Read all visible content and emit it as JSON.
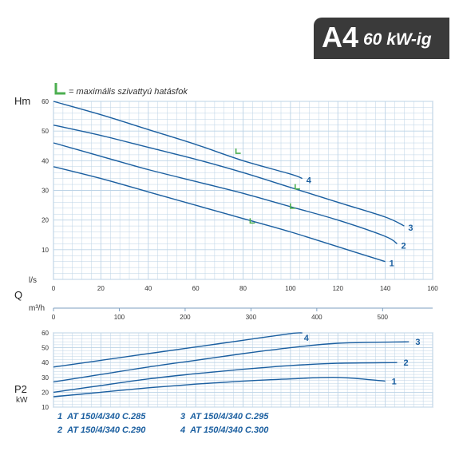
{
  "badge": {
    "code": "A4",
    "range": "60 kW-ig"
  },
  "legend_note": "= maximális szivattyú hatásfok",
  "colors": {
    "curve": "#1b5fa0",
    "grid": "#bcd3e6",
    "efficiency_mark": "#4caf50",
    "badge_bg": "#3a3a3a"
  },
  "chart_data": [
    {
      "type": "line",
      "ylabel": "Hm",
      "xlabel_primary": "l/s",
      "xlabel_secondary": "m³/h",
      "xlabel_q": "Q",
      "xlim": [
        0,
        160
      ],
      "ylim": [
        0,
        60
      ],
      "x_ticks": [
        0,
        20,
        40,
        60,
        80,
        100,
        120,
        140,
        160
      ],
      "y_ticks": [
        10,
        20,
        30,
        40,
        50,
        60
      ],
      "secondary_x_ticks": [
        0,
        100,
        200,
        300,
        400,
        500
      ],
      "series": [
        {
          "name": "1",
          "x": [
            0,
            20,
            40,
            60,
            80,
            100,
            120,
            140
          ],
          "y": [
            38,
            34,
            29.5,
            25,
            20.5,
            16,
            11,
            6
          ]
        },
        {
          "name": "2",
          "x": [
            0,
            20,
            40,
            60,
            80,
            100,
            120,
            140,
            145
          ],
          "y": [
            46,
            41.5,
            37,
            33,
            29,
            24.5,
            20,
            14.5,
            12
          ]
        },
        {
          "name": "3",
          "x": [
            0,
            20,
            40,
            60,
            80,
            100,
            120,
            140,
            148
          ],
          "y": [
            52,
            48.5,
            44.5,
            40.5,
            36,
            31,
            26,
            21,
            18
          ]
        },
        {
          "name": "4",
          "x": [
            0,
            20,
            40,
            60,
            80,
            100,
            105
          ],
          "y": [
            60,
            55.5,
            50.5,
            45.5,
            40,
            35.5,
            34
          ]
        }
      ],
      "efficiency_points": [
        {
          "x": 83,
          "y": 19
        },
        {
          "x": 100,
          "y": 24
        },
        {
          "x": 102,
          "y": 30.5
        },
        {
          "x": 77,
          "y": 42.5
        }
      ]
    },
    {
      "type": "line",
      "ylabel": "P2",
      "yunit": "kW",
      "xlim": [
        0,
        160
      ],
      "ylim": [
        10,
        60
      ],
      "y_ticks": [
        10,
        20,
        30,
        40,
        50,
        60
      ],
      "series": [
        {
          "name": "1",
          "x": [
            0,
            20,
            40,
            60,
            80,
            100,
            120,
            140
          ],
          "y": [
            17,
            20,
            23,
            25.5,
            27.5,
            29,
            30,
            27.5
          ]
        },
        {
          "name": "2",
          "x": [
            0,
            20,
            40,
            60,
            80,
            100,
            120,
            145
          ],
          "y": [
            20,
            24.5,
            29,
            32.5,
            35.5,
            38,
            39.5,
            40
          ]
        },
        {
          "name": "3",
          "x": [
            0,
            20,
            40,
            60,
            80,
            100,
            120,
            150
          ],
          "y": [
            27,
            32,
            37,
            41.5,
            46,
            50,
            53,
            54
          ]
        },
        {
          "name": "4",
          "x": [
            0,
            20,
            40,
            60,
            80,
            100,
            105
          ],
          "y": [
            37,
            41.5,
            46,
            50.5,
            55,
            59.5,
            60
          ]
        }
      ]
    }
  ],
  "models": [
    {
      "num": "1",
      "label": "AT 150/4/340 C.285"
    },
    {
      "num": "2",
      "label": "AT 150/4/340 C.290"
    },
    {
      "num": "3",
      "label": "AT 150/4/340 C.295"
    },
    {
      "num": "4",
      "label": "AT 150/4/340 C.300"
    }
  ]
}
